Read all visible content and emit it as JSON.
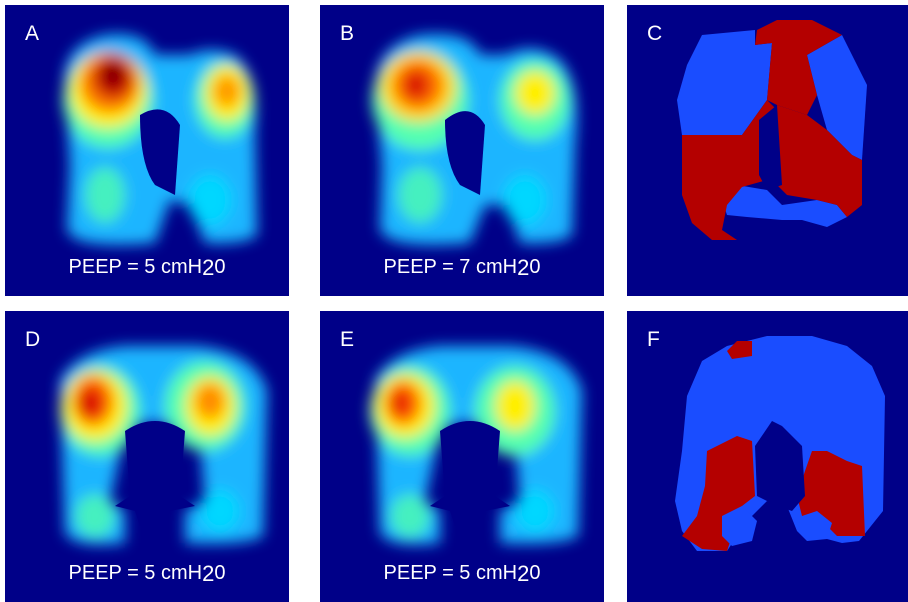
{
  "panels": [
    {
      "id": "A",
      "label": "A",
      "caption": {
        "text": "PEEP = 5 cmH",
        "suffix": "2",
        "tail": "0"
      },
      "kind": "heat"
    },
    {
      "id": "B",
      "label": "B",
      "caption": {
        "text": "PEEP = 7 cmH",
        "suffix": "2",
        "tail": "0"
      },
      "kind": "heat"
    },
    {
      "id": "C",
      "label": "C",
      "kind": "binary"
    },
    {
      "id": "D",
      "label": "D",
      "caption": {
        "text": "PEEP = 5 cmH",
        "suffix": "2",
        "tail": "0"
      },
      "kind": "heat"
    },
    {
      "id": "E",
      "label": "E",
      "caption": {
        "text": "PEEP = 5 cmH",
        "suffix": "2",
        "tail": "0"
      },
      "kind": "heat"
    },
    {
      "id": "F",
      "label": "F",
      "kind": "binary"
    }
  ],
  "colors": {
    "background": "#000088",
    "map_blue": "#1a4dff",
    "map_red": "#b40000"
  }
}
